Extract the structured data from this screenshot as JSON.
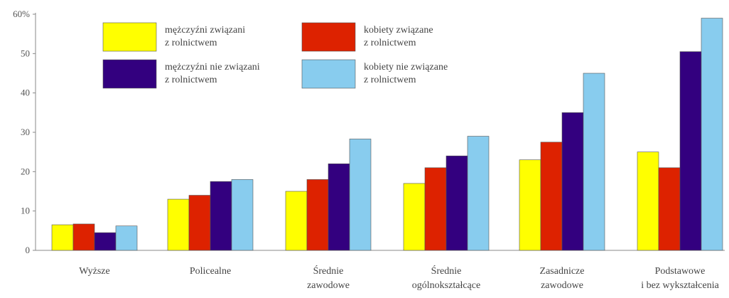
{
  "chart_data": {
    "type": "bar",
    "title": "",
    "xlabel": "",
    "ylabel": "",
    "ylim": [
      0,
      60
    ],
    "yticks": [
      "0",
      "10",
      "20",
      "30",
      "40",
      "50",
      "60%"
    ],
    "grid": false,
    "legend_position": "top-left",
    "categories": [
      [
        "Wyższe"
      ],
      [
        "Policealne"
      ],
      [
        "Średnie",
        "zawodowe"
      ],
      [
        "Średnie",
        "ogólnokształcące"
      ],
      [
        "Zasadnicze",
        "zawodowe"
      ],
      [
        "Podstawowe",
        "i bez wykształcenia"
      ]
    ],
    "series": [
      {
        "name": [
          "mężczyźni związani",
          "z rolnictwem"
        ],
        "color": "#ffff00",
        "values": [
          6.5,
          13,
          15,
          17,
          23,
          25
        ]
      },
      {
        "name": [
          "kobiety związane",
          "z rolnictwem"
        ],
        "color": "#dd2200",
        "values": [
          6.7,
          14,
          18,
          21,
          27.5,
          21
        ]
      },
      {
        "name": [
          "mężczyźni nie związani",
          "z rolnictwem"
        ],
        "color": "#33007f",
        "values": [
          4.5,
          17.5,
          22,
          24,
          35,
          50.5
        ]
      },
      {
        "name": [
          "kobiety nie związane",
          "z rolnictwem"
        ],
        "color": "#88ccee",
        "values": [
          6.2,
          18,
          28.3,
          29,
          45,
          59
        ]
      }
    ]
  }
}
